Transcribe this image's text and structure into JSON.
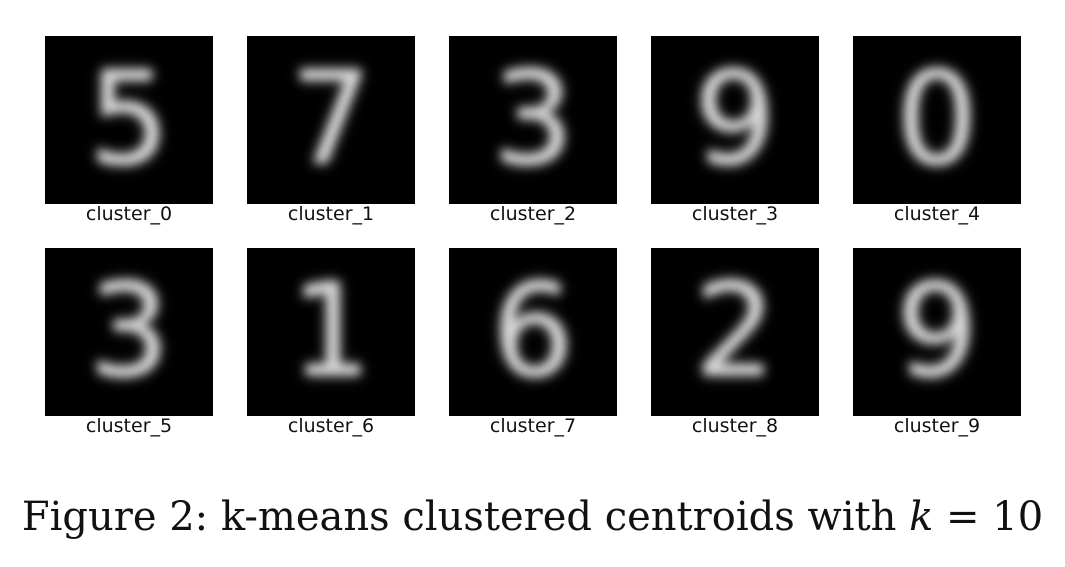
{
  "figure": {
    "caption_prefix": "Figure 2: k-means clustered centroids with",
    "caption_var": "k",
    "caption_eq": "= 10"
  },
  "clusters": [
    {
      "label": "cluster_0",
      "digit": "5"
    },
    {
      "label": "cluster_1",
      "digit": "7"
    },
    {
      "label": "cluster_2",
      "digit": "3"
    },
    {
      "label": "cluster_3",
      "digit": "9"
    },
    {
      "label": "cluster_4",
      "digit": "0"
    },
    {
      "label": "cluster_5",
      "digit": "3"
    },
    {
      "label": "cluster_6",
      "digit": "1"
    },
    {
      "label": "cluster_7",
      "digit": "6"
    },
    {
      "label": "cluster_8",
      "digit": "2"
    },
    {
      "label": "cluster_9",
      "digit": "9"
    }
  ]
}
